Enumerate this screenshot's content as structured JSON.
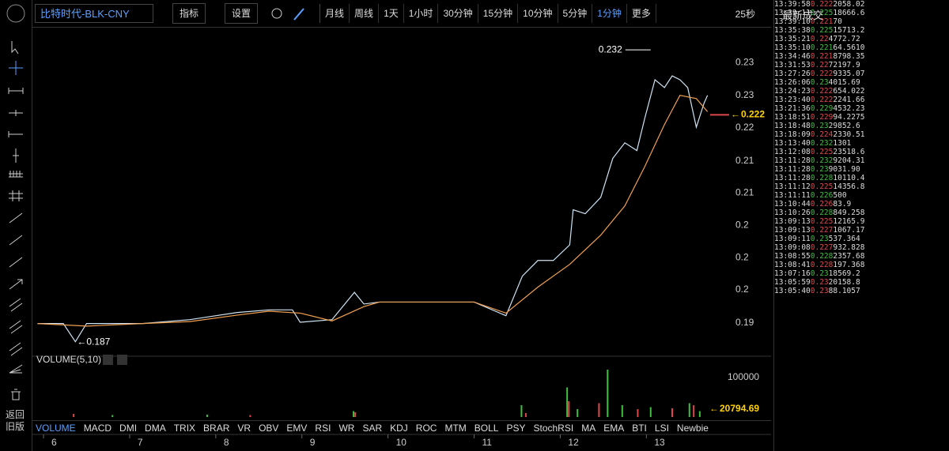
{
  "toolbar": {
    "symbol": "比特时代-BLK-CNY",
    "buttons": [
      "指标",
      "设置"
    ],
    "periods": [
      "月线",
      "周线",
      "1天",
      "1小时",
      "30分钟",
      "15分钟",
      "10分钟",
      "5分钟",
      "1分钟",
      "更多"
    ],
    "countdown": "25秒"
  },
  "sidebar": {
    "back": "返回旧版"
  },
  "trades": {
    "title": "最新成交",
    "rows": [
      {
        "time": "13:39:58",
        "price": "0.222",
        "amount": "2058.02",
        "color": "#e0474c"
      },
      {
        "time": "13:39:11",
        "price": "0.225",
        "amount": "18666.6",
        "color": "#3fbf3f"
      },
      {
        "time": "13:39:10",
        "price": "0.221",
        "amount": "70",
        "color": "#e0474c"
      },
      {
        "time": "13:35:38",
        "price": "0.225",
        "amount": "15713.2",
        "color": "#3fbf3f"
      },
      {
        "time": "13:35:21",
        "price": "0.22",
        "amount": "4772.72",
        "color": "#e0474c"
      },
      {
        "time": "13:35:10",
        "price": "0.221",
        "amount": "64.5610",
        "color": "#3fbf3f"
      },
      {
        "time": "13:34:46",
        "price": "0.221",
        "amount": "8798.35",
        "color": "#e0474c"
      },
      {
        "time": "13:31:53",
        "price": "0.22",
        "amount": "72197.9",
        "color": "#e0474c"
      },
      {
        "time": "13:27:26",
        "price": "0.222",
        "amount": "9335.07",
        "color": "#e0474c"
      },
      {
        "time": "13:26:06",
        "price": "0.23",
        "amount": "4015.69",
        "color": "#3fbf3f"
      },
      {
        "time": "13:24:23",
        "price": "0.222",
        "amount": "654.022",
        "color": "#e0474c"
      },
      {
        "time": "13:23:40",
        "price": "0.222",
        "amount": "2241.66",
        "color": "#e0474c"
      },
      {
        "time": "13:21:36",
        "price": "0.229",
        "amount": "4532.23",
        "color": "#3fbf3f"
      },
      {
        "time": "13:18:51",
        "price": "0.229",
        "amount": "94.2275",
        "color": "#e0474c"
      },
      {
        "time": "13:18:48",
        "price": "0.23",
        "amount": "29852.6",
        "color": "#3fbf3f"
      },
      {
        "time": "13:18:09",
        "price": "0.224",
        "amount": "2330.51",
        "color": "#e0474c"
      },
      {
        "time": "13:13:40",
        "price": "0.232",
        "amount": "1301",
        "color": "#3fbf3f"
      },
      {
        "time": "13:12:08",
        "price": "0.225",
        "amount": "23518.6",
        "color": "#e0474c"
      },
      {
        "time": "13:11:28",
        "price": "0.232",
        "amount": "9204.31",
        "color": "#3fbf3f"
      },
      {
        "time": "13:11:28",
        "price": "0.23",
        "amount": "9031.90",
        "color": "#3fbf3f"
      },
      {
        "time": "13:11:28",
        "price": "0.228",
        "amount": "10110.4",
        "color": "#3fbf3f"
      },
      {
        "time": "13:11:12",
        "price": "0.225",
        "amount": "14356.8",
        "color": "#e0474c"
      },
      {
        "time": "13:11:11",
        "price": "0.226",
        "amount": "500",
        "color": "#3fbf3f"
      },
      {
        "time": "13:10:44",
        "price": "0.226",
        "amount": "83.9",
        "color": "#e0474c"
      },
      {
        "time": "13:10:26",
        "price": "0.228",
        "amount": "849.258",
        "color": "#3fbf3f"
      },
      {
        "time": "13:09:13",
        "price": "0.225",
        "amount": "12165.9",
        "color": "#e0474c"
      },
      {
        "time": "13:09:13",
        "price": "0.227",
        "amount": "1067.17",
        "color": "#e0474c"
      },
      {
        "time": "13:09:11",
        "price": "0.23",
        "amount": "537.364",
        "color": "#3fbf3f"
      },
      {
        "time": "13:09:08",
        "price": "0.227",
        "amount": "932.828",
        "color": "#e0474c"
      },
      {
        "time": "13:08:55",
        "price": "0.228",
        "amount": "2357.68",
        "color": "#3fbf3f"
      },
      {
        "time": "13:08:41",
        "price": "0.228",
        "amount": "197.368",
        "color": "#e0474c"
      },
      {
        "time": "13:07:16",
        "price": "0.23",
        "amount": "18569.2",
        "color": "#3fbf3f"
      },
      {
        "time": "13:05:59",
        "price": "0.23",
        "amount": "20158.8",
        "color": "#e0474c"
      },
      {
        "time": "13:05:40",
        "price": "0.23",
        "amount": "88.1057",
        "color": "#e0474c"
      }
    ]
  },
  "indicators": [
    "VOLUME",
    "MACD",
    "DMI",
    "DMA",
    "TRIX",
    "BRAR",
    "VR",
    "OBV",
    "EMV",
    "RSI",
    "WR",
    "SAR",
    "KDJ",
    "ROC",
    "MTM",
    "BOLL",
    "PSY",
    "StochRSI",
    "MA",
    "EMA",
    "BTI",
    "LSI",
    "Newbie"
  ],
  "chart_data": {
    "type": "line",
    "xlim": [
      5.862,
      14.448
    ],
    "xticks": [
      6,
      7,
      8,
      9,
      10,
      11,
      12,
      13
    ],
    "ylim": [
      0.1856,
      0.2342
    ],
    "yticks": [
      {
        "value": 0.23,
        "label": "0.23"
      },
      {
        "value": 0.225,
        "label": "0.23"
      },
      {
        "value": 0.22,
        "label": "0.22"
      },
      {
        "value": 0.2149,
        "label": "0.21"
      },
      {
        "value": 0.21,
        "label": "0.21"
      },
      {
        "value": 0.205,
        "label": "0.2"
      },
      {
        "value": 0.2,
        "label": "0.2"
      },
      {
        "value": 0.1951,
        "label": "0.2"
      },
      {
        "value": 0.19,
        "label": "0.19"
      }
    ],
    "series": [
      {
        "color": "#cfe3f5",
        "x": [
          5.93,
          6.23,
          6.37,
          6.5,
          7.15,
          7.7,
          8.25,
          8.62,
          8.89,
          8.98,
          9.35,
          9.61,
          9.72,
          9.9,
          11.0,
          11.37,
          11.56,
          11.74,
          11.92,
          12.11,
          12.15,
          12.29,
          12.47,
          12.61,
          12.75,
          12.89,
          12.98,
          13.1,
          13.21,
          13.3,
          13.39,
          13.48,
          13.58,
          13.67,
          13.71
        ],
        "values": [
          0.1899,
          0.1899,
          0.1871,
          0.1899,
          0.1899,
          0.1905,
          0.1916,
          0.192,
          0.192,
          0.1901,
          0.1905,
          0.1947,
          0.1929,
          0.1932,
          0.1932,
          0.1911,
          0.1972,
          0.1996,
          0.1996,
          0.202,
          0.2074,
          0.2068,
          0.2093,
          0.2153,
          0.2177,
          0.2165,
          0.2214,
          0.2274,
          0.2262,
          0.228,
          0.2274,
          0.2262,
          0.2201,
          0.2238,
          0.225
        ]
      },
      {
        "color": "#f0a050",
        "x": [
          5.93,
          6.5,
          7.15,
          7.7,
          8.25,
          8.62,
          8.98,
          9.35,
          9.72,
          9.9,
          11.0,
          11.37,
          11.74,
          12.11,
          12.47,
          12.75,
          12.98,
          13.21,
          13.39,
          13.58,
          13.71
        ],
        "values": [
          0.1899,
          0.1895,
          0.1899,
          0.1902,
          0.1912,
          0.1918,
          0.1915,
          0.1903,
          0.1925,
          0.1932,
          0.1932,
          0.1915,
          0.1955,
          0.199,
          0.2035,
          0.208,
          0.214,
          0.2205,
          0.225,
          0.2245,
          0.2225
        ]
      }
    ],
    "high_label": 0.232,
    "high_x": 13.05,
    "low_label": 0.187,
    "low_x": 6.37,
    "last_price": 0.222,
    "last_price_color": "#ffd200",
    "volume": {
      "title": "VOLUME(5,10)",
      "ylim": [
        0,
        126000
      ],
      "yticks": [
        100000
      ],
      "last_value": 20794.69,
      "series": [
        {
          "color": "#3fbf3f",
          "x": [
            6.8,
            7.9,
            9.6,
            11.55,
            12.08,
            12.2,
            12.55,
            12.72,
            13.05,
            13.5,
            13.62
          ],
          "values": [
            5000,
            6000,
            15000,
            30000,
            75000,
            20000,
            120000,
            30000,
            25000,
            35000,
            15000
          ]
        },
        {
          "color": "#e0474c",
          "x": [
            6.35,
            8.4,
            9.62,
            11.6,
            12.1,
            12.45,
            12.9,
            13.3,
            13.55
          ],
          "values": [
            8000,
            5000,
            12000,
            10000,
            40000,
            35000,
            20000,
            22000,
            30000
          ]
        }
      ]
    }
  }
}
